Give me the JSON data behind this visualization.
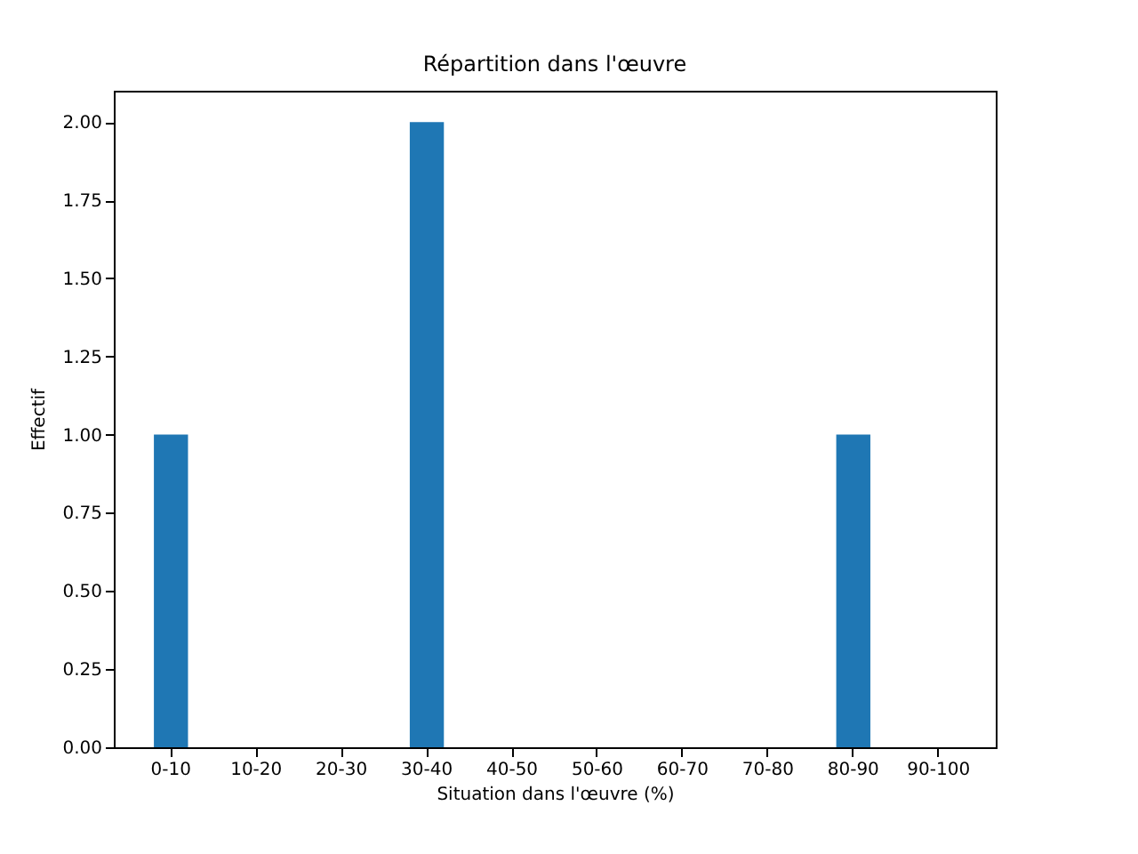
{
  "chart_data": {
    "type": "bar",
    "title": "Répartition dans l'œuvre",
    "xlabel": "Situation dans l'œuvre (%)",
    "ylabel": "Effectif",
    "categories": [
      "0-10",
      "10-20",
      "20-30",
      "30-40",
      "40-50",
      "50-60",
      "60-70",
      "70-80",
      "80-90",
      "90-100"
    ],
    "values": [
      1,
      0,
      0,
      2,
      0,
      0,
      0,
      0,
      1,
      0
    ],
    "color": "#1f77b4",
    "ylim": [
      0,
      2.1
    ],
    "yticks": [
      {
        "value": 0,
        "label": "0.00"
      },
      {
        "value": 0.25,
        "label": "0.25"
      },
      {
        "value": 0.5,
        "label": "0.50"
      },
      {
        "value": 0.75,
        "label": "0.75"
      },
      {
        "value": 1,
        "label": "1.00"
      },
      {
        "value": 1.25,
        "label": "1.25"
      },
      {
        "value": 1.5,
        "label": "1.50"
      },
      {
        "value": 1.75,
        "label": "1.75"
      },
      {
        "value": 2,
        "label": "2.00"
      }
    ],
    "grid": false
  }
}
